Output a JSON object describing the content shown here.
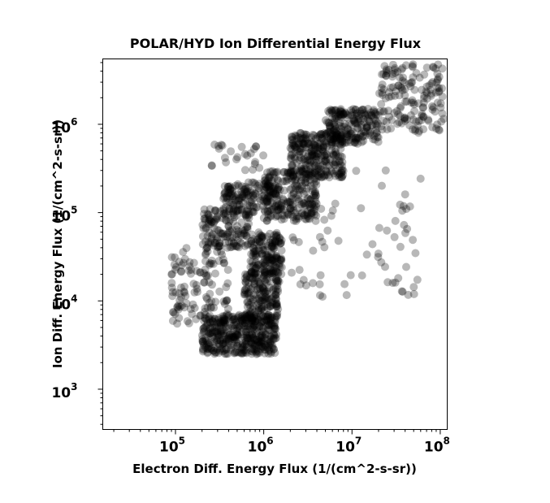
{
  "chart_data": {
    "type": "scatter",
    "title": "POLAR/HYD  Ion Differential Energy Flux",
    "xlabel": "Electron Diff. Energy Flux (1/(cm^2-s-sr))",
    "ylabel": "Ion Diff. Energy Flux (1/(cm^2-s-sr))",
    "x_scale": "log",
    "y_scale": "log",
    "xlim": [
      15000,
      120000000
    ],
    "ylim": [
      350,
      5500000
    ],
    "x_ticks": [
      {
        "base": "10",
        "exp": "5",
        "value": 100000
      },
      {
        "base": "10",
        "exp": "6",
        "value": 1000000
      },
      {
        "base": "10",
        "exp": "7",
        "value": 10000000
      },
      {
        "base": "10",
        "exp": "8",
        "value": 100000000
      }
    ],
    "y_ticks": [
      {
        "base": "10",
        "exp": "3",
        "value": 1000
      },
      {
        "base": "10",
        "exp": "4",
        "value": 10000
      },
      {
        "base": "10",
        "exp": "5",
        "value": 100000
      },
      {
        "base": "10",
        "exp": "6",
        "value": 1000000
      }
    ],
    "grid": false,
    "marker_color": "#000000",
    "marker_opacity": 0.28,
    "clusters": [
      {
        "x_range": [
          200000,
          1400000
        ],
        "y_range": [
          2500,
          7000
        ],
        "count": 420
      },
      {
        "x_range": [
          600000,
          1500000
        ],
        "y_range": [
          6000,
          22000
        ],
        "count": 180
      },
      {
        "x_range": [
          700000,
          1600000
        ],
        "y_range": [
          20000,
          60000
        ],
        "count": 160
      },
      {
        "x_range": [
          200000,
          700000
        ],
        "y_range": [
          40000,
          110000
        ],
        "count": 150
      },
      {
        "x_range": [
          350000,
          1500000
        ],
        "y_range": [
          100000,
          220000
        ],
        "count": 150
      },
      {
        "x_range": [
          1000000,
          4000000
        ],
        "y_range": [
          80000,
          300000
        ],
        "count": 220
      },
      {
        "x_range": [
          2000000,
          8000000
        ],
        "y_range": [
          250000,
          800000
        ],
        "count": 260
      },
      {
        "x_range": [
          5000000,
          20000000
        ],
        "y_range": [
          600000,
          1500000
        ],
        "count": 200
      },
      {
        "x_range": [
          20000000,
          110000000
        ],
        "y_range": [
          800000,
          4800000
        ],
        "count": 160
      },
      {
        "x_range": [
          90000,
          400000
        ],
        "y_range": [
          5500,
          40000
        ],
        "count": 120
      },
      {
        "x_range": [
          250000,
          1000000
        ],
        "y_range": [
          300000,
          600000
        ],
        "count": 25
      },
      {
        "x_range": [
          2000000,
          60000000
        ],
        "y_range": [
          10000,
          300000
        ],
        "count": 70
      }
    ]
  }
}
